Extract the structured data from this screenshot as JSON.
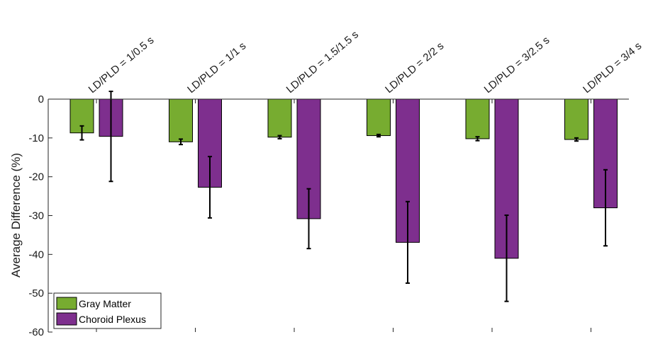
{
  "chart_data": {
    "type": "bar",
    "categories": [
      "LD/PLD = 1/0.5 s",
      "LD/PLD = 1/1 s",
      "LD/PLD = 1.5/1.5 s",
      "LD/PLD = 2/2 s",
      "LD/PLD = 3/2.5 s",
      "LD/PLD = 3/4 s"
    ],
    "series": [
      {
        "name": "Gray Matter",
        "color": "#77ac30",
        "values": [
          -8.7,
          -11.0,
          -9.8,
          -9.4,
          -10.2,
          -10.4
        ],
        "errors": [
          1.8,
          0.7,
          0.4,
          0.3,
          0.5,
          0.4
        ]
      },
      {
        "name": "Choroid Plexus",
        "color": "#7e2f8e",
        "values": [
          -9.6,
          -22.7,
          -30.8,
          -36.9,
          -41.0,
          -28.0
        ],
        "errors": [
          11.6,
          7.9,
          7.7,
          10.5,
          11.1,
          9.8
        ]
      }
    ],
    "ylabel": "Average Difference (%)",
    "ylim": [
      -60,
      0
    ],
    "yticks": [
      0,
      -10,
      -20,
      -30,
      -40,
      -50,
      -60
    ],
    "grid": false,
    "legend_position": "bottom-left"
  }
}
